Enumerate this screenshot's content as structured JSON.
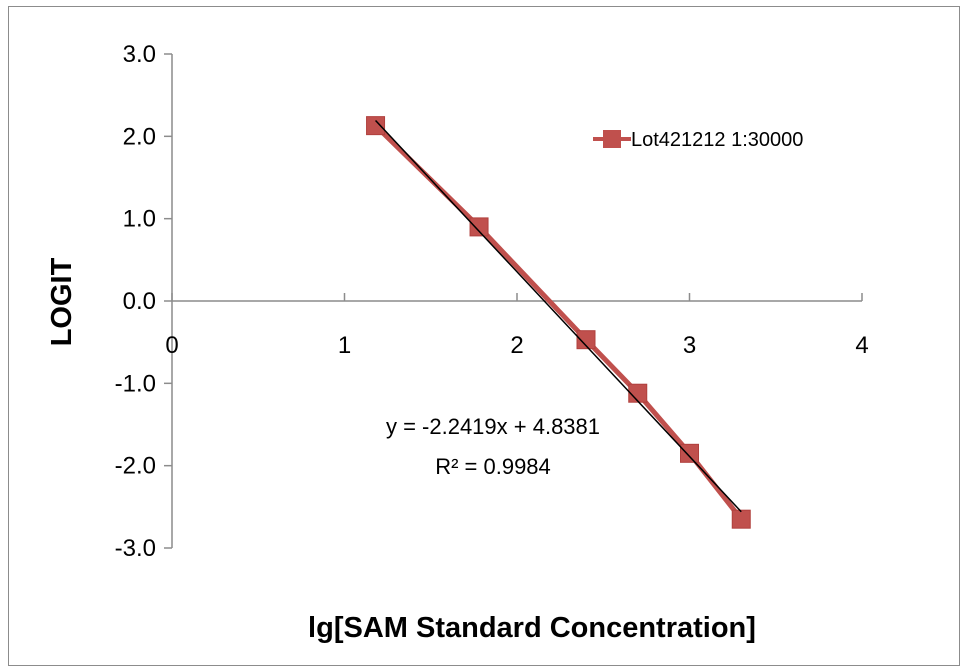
{
  "chart_data": {
    "type": "scatter",
    "xlabel": "lg[SAM Standard Concentration]",
    "ylabel": "LOGIT",
    "xlim": [
      0,
      4
    ],
    "ylim": [
      -3,
      3
    ],
    "x_ticks": [
      "0",
      "1",
      "2",
      "3",
      "4"
    ],
    "y_ticks": [
      "3.0",
      "2.0",
      "1.0",
      "0.0",
      "-1.0",
      "-2.0",
      "-3.0"
    ],
    "grid": false,
    "legend_position": "top-right",
    "series": [
      {
        "name": "Lot421212 1:30000",
        "color": "#c0504d",
        "marker": "square",
        "x": [
          1.18,
          1.78,
          2.4,
          2.7,
          3.0,
          3.3
        ],
        "y": [
          2.13,
          0.9,
          -0.47,
          -1.12,
          -1.85,
          -2.65
        ]
      }
    ],
    "trendline": {
      "type": "linear",
      "slope": -2.2419,
      "intercept": 4.8381,
      "color": "#000000",
      "equation": "y = -2.2419x + 4.8381",
      "r_squared": "R² = 0.9984"
    }
  }
}
